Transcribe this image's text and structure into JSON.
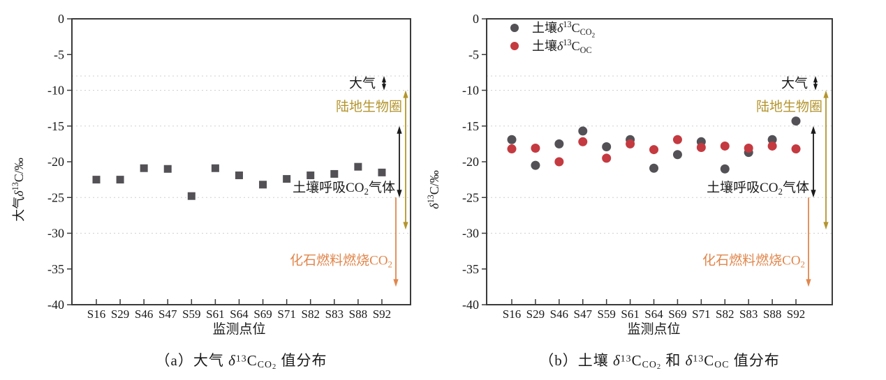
{
  "colors": {
    "gray_marker": "#545156",
    "red_marker": "#c43a40",
    "olive_annotation": "#b3952e",
    "orange_annotation": "#e0874d",
    "axis": "#3a3a3a",
    "gridline": "#cfcfcf",
    "text": "#1a1a1a",
    "background": "#ffffff"
  },
  "chart_data": [
    {
      "id": "a",
      "type": "scatter",
      "caption": [
        {
          "t": "（a）大气 "
        },
        {
          "t": "δ",
          "i": true
        },
        {
          "t": "13",
          "s": "sup"
        },
        {
          "t": "C"
        },
        {
          "t": "CO",
          "s": "sub"
        },
        {
          "t": "2",
          "s": "subsub"
        },
        {
          "t": " 值分布"
        }
      ],
      "xlabel": "监测点位",
      "ylabel": [
        {
          "t": "大气"
        },
        {
          "t": "δ",
          "i": true
        },
        {
          "t": "13",
          "s": "sup"
        },
        {
          "t": "C/‰"
        }
      ],
      "ylim": [
        0,
        -40
      ],
      "yticks": [
        0,
        -5,
        -10,
        -15,
        -20,
        -25,
        -30,
        -35,
        -40
      ],
      "gridlines": [
        -8,
        -10,
        -15,
        -25,
        -30
      ],
      "grid_style": "dotted",
      "legend": false,
      "categories": [
        "S16",
        "S29",
        "S46",
        "S47",
        "S59",
        "S61",
        "S64",
        "S69",
        "S71",
        "S82",
        "S83",
        "S88",
        "S92"
      ],
      "series": [
        {
          "id": "atmospheric-co2",
          "marker": "square",
          "color": "#545156",
          "values": [
            -22.5,
            -22.5,
            -20.9,
            -21.0,
            -24.8,
            -20.9,
            -21.9,
            -23.2,
            -22.4,
            -21.9,
            -21.7,
            -20.7,
            -21.5
          ]
        }
      ],
      "annotations": [
        {
          "id": "atmosphere",
          "label": [
            {
              "t": "大气"
            }
          ],
          "from": -8,
          "to": -10,
          "heads": "both",
          "color": "#1a1a1a",
          "label_v": -9
        },
        {
          "id": "biosphere",
          "label": [
            {
              "t": "陆地生物圈"
            }
          ],
          "from": -10,
          "to": -29.5,
          "heads": "both",
          "color": "#b3952e",
          "label_v": -12.3
        },
        {
          "id": "soil-respiration",
          "label": [
            {
              "t": "土壤呼吸CO"
            },
            {
              "t": "2",
              "s": "sub"
            },
            {
              "t": "气体"
            }
          ],
          "from": -15,
          "to": -25,
          "heads": "both",
          "color": "#1a1a1a",
          "label_v": -23.6
        },
        {
          "id": "fossil-fuel",
          "label": [
            {
              "t": "化石燃料燃烧CO"
            },
            {
              "t": "2",
              "s": "sub"
            }
          ],
          "from": -25,
          "to": -37.5,
          "heads": "end",
          "color": "#e0874d",
          "label_v": -33.8
        }
      ]
    },
    {
      "id": "b",
      "type": "scatter",
      "caption": [
        {
          "t": "（b）土壤 "
        },
        {
          "t": "δ",
          "i": true
        },
        {
          "t": "13",
          "s": "sup"
        },
        {
          "t": "C"
        },
        {
          "t": "CO",
          "s": "sub"
        },
        {
          "t": "2",
          "s": "subsub"
        },
        {
          "t": " 和 "
        },
        {
          "t": "δ",
          "i": true
        },
        {
          "t": "13",
          "s": "sup"
        },
        {
          "t": "C"
        },
        {
          "t": "OC",
          "s": "sub"
        },
        {
          "t": " 值分布"
        }
      ],
      "xlabel": "监测点位",
      "ylabel": [
        {
          "t": "δ",
          "i": true
        },
        {
          "t": "13",
          "s": "sup"
        },
        {
          "t": "C/‰"
        }
      ],
      "ylim": [
        0,
        -40
      ],
      "yticks": [
        0,
        -5,
        -10,
        -15,
        -20,
        -25,
        -30,
        -35,
        -40
      ],
      "gridlines": [
        -8,
        -10,
        -15,
        -25,
        -30
      ],
      "grid_style": "dotted",
      "legend": true,
      "categories": [
        "S16",
        "S29",
        "S46",
        "S47",
        "S59",
        "S61",
        "S64",
        "S69",
        "S71",
        "S82",
        "S83",
        "S88",
        "S92"
      ],
      "series": [
        {
          "id": "soil-co2",
          "name": [
            {
              "t": "土壤"
            },
            {
              "t": "δ",
              "i": true
            },
            {
              "t": "13",
              "s": "sup"
            },
            {
              "t": "C"
            },
            {
              "t": "CO",
              "s": "sub"
            },
            {
              "t": "2",
              "s": "subsub"
            }
          ],
          "marker": "circle",
          "color": "#545156",
          "values": [
            -16.9,
            -20.5,
            -17.5,
            -15.7,
            -17.9,
            -16.9,
            -20.9,
            -19.0,
            -17.2,
            -21.0,
            -18.7,
            -16.9,
            -14.3
          ]
        },
        {
          "id": "soil-oc",
          "name": [
            {
              "t": "土壤"
            },
            {
              "t": "δ",
              "i": true
            },
            {
              "t": "13",
              "s": "sup"
            },
            {
              "t": "C"
            },
            {
              "t": "OC",
              "s": "sub"
            }
          ],
          "marker": "circle",
          "color": "#c43a40",
          "values": [
            -18.2,
            -18.1,
            -20.0,
            -17.2,
            -19.5,
            -17.5,
            -18.3,
            -16.9,
            -18.0,
            -17.8,
            -18.1,
            -17.8,
            -18.2
          ]
        }
      ],
      "annotations": [
        {
          "id": "atmosphere",
          "label": [
            {
              "t": "大气"
            }
          ],
          "from": -8,
          "to": -10,
          "heads": "both",
          "color": "#1a1a1a",
          "label_v": -9
        },
        {
          "id": "biosphere",
          "label": [
            {
              "t": "陆地生物圈"
            }
          ],
          "from": -10,
          "to": -29.5,
          "heads": "both",
          "color": "#b3952e",
          "label_v": -12.3
        },
        {
          "id": "soil-respiration",
          "label": [
            {
              "t": "土壤呼吸CO"
            },
            {
              "t": "2",
              "s": "sub"
            },
            {
              "t": "气体"
            }
          ],
          "from": -15,
          "to": -25,
          "heads": "both",
          "color": "#1a1a1a",
          "label_v": -23.6
        },
        {
          "id": "fossil-fuel",
          "label": [
            {
              "t": "化石燃料燃烧CO"
            },
            {
              "t": "2",
              "s": "sub"
            }
          ],
          "from": -25,
          "to": -37.5,
          "heads": "end",
          "color": "#e0874d",
          "label_v": -33.8
        }
      ]
    }
  ]
}
